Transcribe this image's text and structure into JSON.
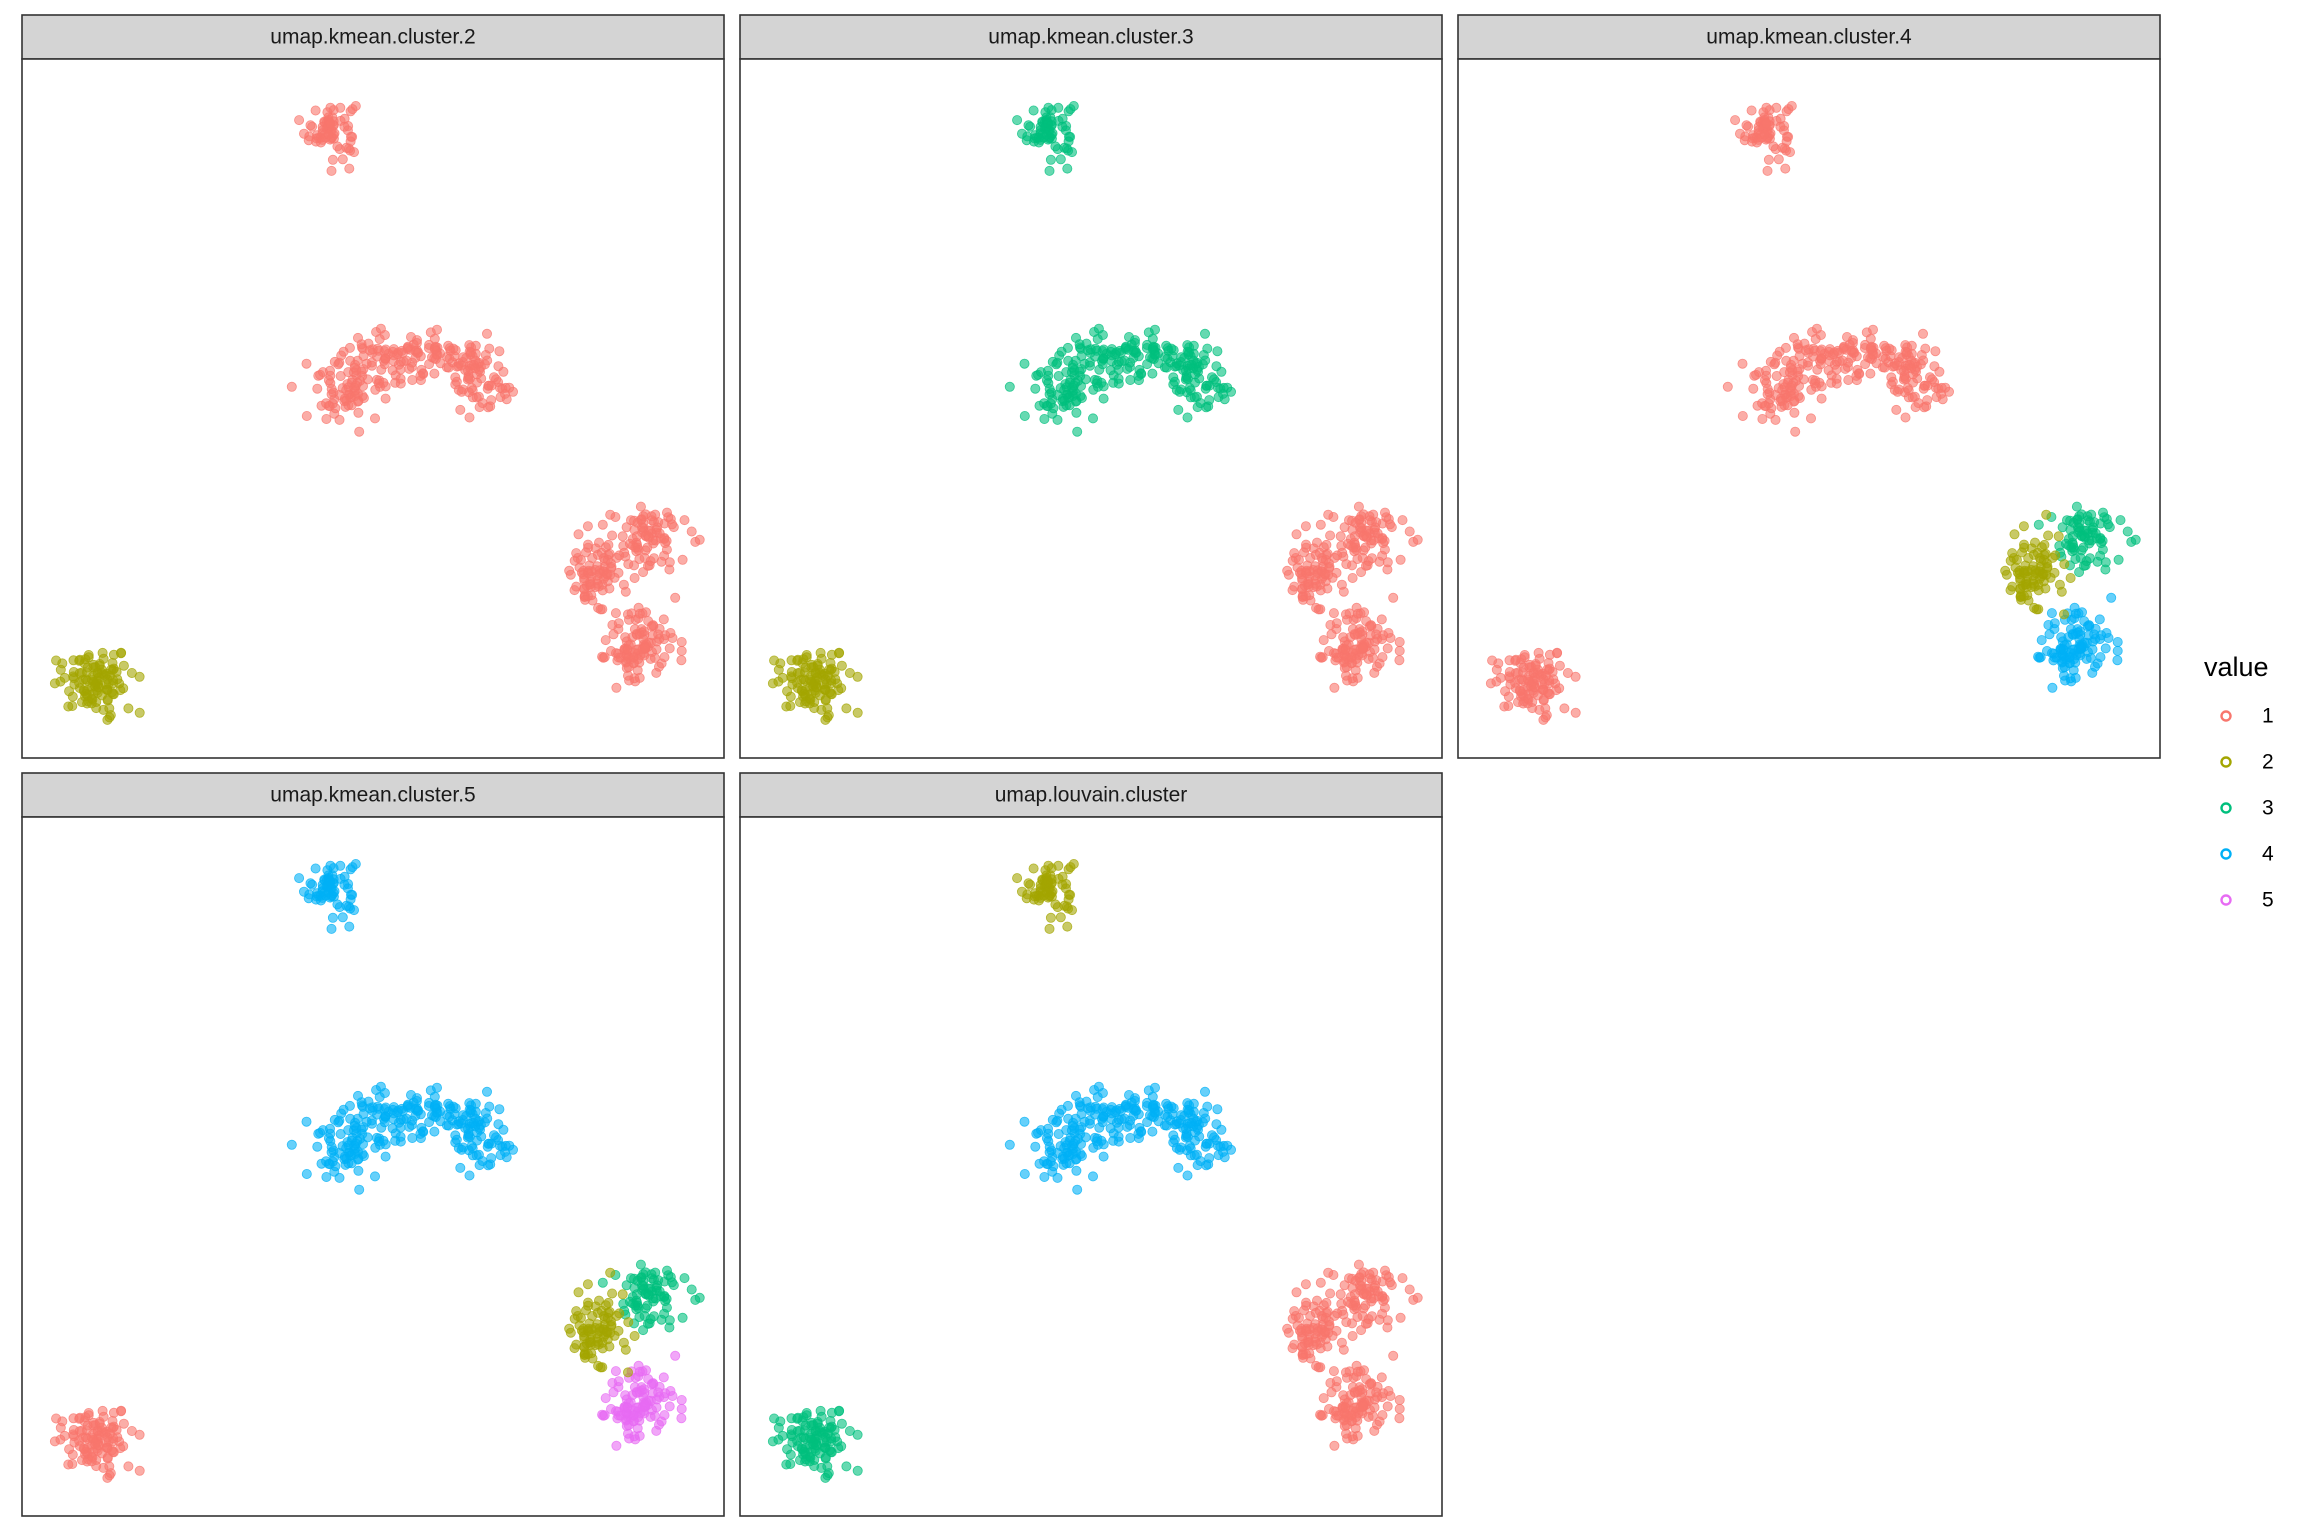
{
  "chart_data": {
    "type": "scatter",
    "facet_labels": [
      "umap.kmean.cluster.2",
      "umap.kmean.cluster.3",
      "umap.kmean.cluster.4",
      "umap.kmean.cluster.5",
      "umap.louvain.cluster"
    ],
    "legend": {
      "title": "value",
      "placement": "right",
      "entries": [
        {
          "label": "1",
          "color": "#F8766D"
        },
        {
          "label": "2",
          "color": "#A3A500"
        },
        {
          "label": "3",
          "color": "#00BF7D"
        },
        {
          "label": "4",
          "color": "#00B0F6"
        },
        {
          "label": "5",
          "color": "#E76BF3"
        }
      ]
    },
    "point_alpha": 0.6,
    "axes": {
      "x_visible": false,
      "y_visible": false,
      "grid": false,
      "xlim": [
        0,
        1
      ],
      "ylim": [
        0,
        1
      ]
    },
    "groups": [
      {
        "id": "g1",
        "cx": 0.44,
        "cy": 0.9,
        "sx": 0.03,
        "sy": 0.035
      },
      {
        "id": "g2",
        "cx": 0.56,
        "cy": 0.52,
        "sx": 0.14,
        "sy": 0.05
      },
      {
        "id": "g3a",
        "cx": 0.88,
        "cy": 0.16,
        "sx": 0.045,
        "sy": 0.045
      },
      {
        "id": "g3b",
        "cx": 0.89,
        "cy": 0.31,
        "sx": 0.045,
        "sy": 0.04
      },
      {
        "id": "g3c",
        "cx": 0.82,
        "cy": 0.27,
        "sx": 0.03,
        "sy": 0.05
      },
      {
        "id": "g4",
        "cx": 0.1,
        "cy": 0.11,
        "sx": 0.045,
        "sy": 0.04
      }
    ],
    "panels": [
      {
        "label": "umap.kmean.cluster.2",
        "group_values": {
          "g1": "1",
          "g2": "1",
          "g3a": "1",
          "g3b": "1",
          "g3c": "1",
          "g4": "2"
        }
      },
      {
        "label": "umap.kmean.cluster.3",
        "group_values": {
          "g1": "3",
          "g2": "3",
          "g3a": "1",
          "g3b": "1",
          "g3c": "1",
          "g4": "2"
        }
      },
      {
        "label": "umap.kmean.cluster.4",
        "group_values": {
          "g1": "1",
          "g2": "1",
          "g3a": "4",
          "g3b": "3",
          "g3c": "2",
          "g4": "1"
        }
      },
      {
        "label": "umap.kmean.cluster.5",
        "group_values": {
          "g1": "4",
          "g2": "4",
          "g3a": "5",
          "g3b": "3",
          "g3c": "2",
          "g4": "1"
        }
      },
      {
        "label": "umap.louvain.cluster",
        "group_values": {
          "g1": "2",
          "g2": "4",
          "g3a": "1",
          "g3b": "1",
          "g3c": "1",
          "g4": "3"
        }
      }
    ]
  }
}
